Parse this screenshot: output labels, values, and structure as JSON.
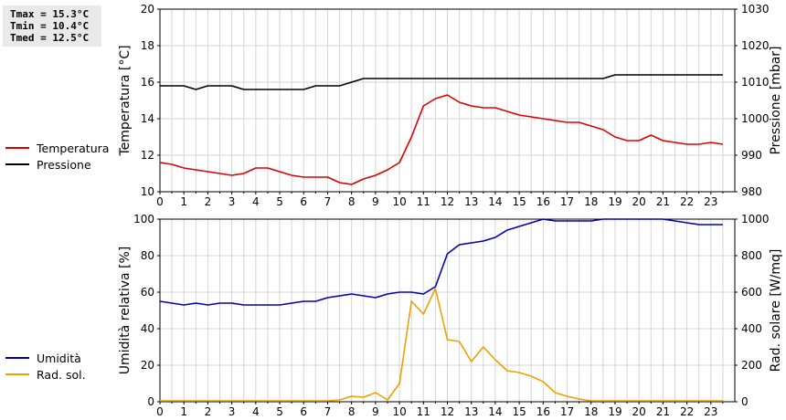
{
  "stats": {
    "tmax": "Tmax = 15.3°C",
    "tmin": "Tmin = 10.4°C",
    "tmed": "Tmed = 12.5°C"
  },
  "legend_top": [
    {
      "label": "Temperatura",
      "color": "#dd0000"
    },
    {
      "label": "Pressione",
      "color": "#000000"
    }
  ],
  "legend_bottom": [
    {
      "label": "Umidità",
      "color": "#0000bb"
    },
    {
      "label": "Rad. sol.",
      "color": "#f0a000"
    }
  ],
  "chart_data": [
    {
      "type": "line",
      "x_ticks": [
        "0",
        "1",
        "2",
        "3",
        "4",
        "5",
        "6",
        "7",
        "8",
        "9",
        "10",
        "11",
        "12",
        "13",
        "14",
        "15",
        "16",
        "17",
        "18",
        "19",
        "20",
        "21",
        "22",
        "23"
      ],
      "xlim": [
        0,
        24
      ],
      "ylabel": "Temperatura [°C]",
      "ylim": [
        10,
        20
      ],
      "y_ticks": [
        "10",
        "12",
        "14",
        "16",
        "18",
        "20"
      ],
      "y2label": "Pressione [mbar]",
      "y2lim": [
        980,
        1030
      ],
      "y2_ticks": [
        "980",
        "990",
        "1000",
        "1010",
        "1020",
        "1030"
      ],
      "grid": true,
      "series": [
        {
          "name": "Temperatura",
          "axis": "left",
          "color": "#dd0000",
          "x": [
            0,
            0.5,
            1,
            1.5,
            2,
            2.5,
            3,
            3.5,
            4,
            4.5,
            5,
            5.5,
            6,
            6.5,
            7,
            7.5,
            8,
            8.5,
            9,
            9.5,
            10,
            10.5,
            11,
            11.5,
            12,
            12.5,
            13,
            13.5,
            14,
            14.5,
            15,
            15.5,
            16,
            16.5,
            17,
            17.5,
            18,
            18.5,
            19,
            19.5,
            20,
            20.5,
            21,
            21.5,
            22,
            22.5,
            23,
            23.5
          ],
          "y": [
            11.6,
            11.5,
            11.3,
            11.2,
            11.1,
            11.0,
            10.9,
            11.0,
            11.3,
            11.3,
            11.1,
            10.9,
            10.8,
            10.8,
            10.8,
            10.5,
            10.4,
            10.7,
            10.9,
            11.2,
            11.6,
            13.0,
            14.7,
            15.1,
            15.3,
            14.9,
            14.7,
            14.6,
            14.6,
            14.4,
            14.2,
            14.1,
            14.0,
            13.9,
            13.8,
            13.8,
            13.6,
            13.4,
            13.0,
            12.8,
            12.8,
            13.1,
            12.8,
            12.7,
            12.6,
            12.6,
            12.7,
            12.6
          ]
        },
        {
          "name": "Pressione",
          "axis": "right",
          "color": "#000000",
          "x": [
            0,
            0.5,
            1,
            1.5,
            2,
            2.5,
            3,
            3.5,
            4,
            4.5,
            5,
            5.5,
            6,
            6.5,
            7,
            7.5,
            8,
            8.5,
            9,
            9.5,
            10,
            10.5,
            11,
            11.5,
            12,
            12.5,
            13,
            13.5,
            14,
            14.5,
            15,
            15.5,
            16,
            16.5,
            17,
            17.5,
            18,
            18.5,
            19,
            19.5,
            20,
            20.5,
            21,
            21.5,
            22,
            22.5,
            23,
            23.5
          ],
          "y": [
            1009,
            1009,
            1009,
            1008,
            1009,
            1009,
            1009,
            1008,
            1008,
            1008,
            1008,
            1008,
            1008,
            1009,
            1009,
            1009,
            1010,
            1011,
            1011,
            1011,
            1011,
            1011,
            1011,
            1011,
            1011,
            1011,
            1011,
            1011,
            1011,
            1011,
            1011,
            1011,
            1011,
            1011,
            1011,
            1011,
            1011,
            1011,
            1012,
            1012,
            1012,
            1012,
            1012,
            1012,
            1012,
            1012,
            1012,
            1012
          ]
        }
      ]
    },
    {
      "type": "line",
      "x_ticks": [
        "0",
        "1",
        "2",
        "3",
        "4",
        "5",
        "6",
        "7",
        "8",
        "9",
        "10",
        "11",
        "12",
        "13",
        "14",
        "15",
        "16",
        "17",
        "18",
        "19",
        "20",
        "21",
        "22",
        "23"
      ],
      "xlim": [
        0,
        24
      ],
      "ylabel": "Umidità relativa [%]",
      "ylim": [
        0,
        100
      ],
      "y_ticks": [
        "0",
        "20",
        "40",
        "60",
        "80",
        "100"
      ],
      "y2label": "Rad. solare [W/mq]",
      "y2lim": [
        0,
        1000
      ],
      "y2_ticks": [
        "0",
        "200",
        "400",
        "600",
        "800",
        "1000"
      ],
      "grid": true,
      "series": [
        {
          "name": "Umidità",
          "axis": "left",
          "color": "#0000bb",
          "x": [
            0,
            0.5,
            1,
            1.5,
            2,
            2.5,
            3,
            3.5,
            4,
            4.5,
            5,
            5.5,
            6,
            6.5,
            7,
            7.5,
            8,
            8.5,
            9,
            9.5,
            10,
            10.5,
            11,
            11.5,
            12,
            12.5,
            13,
            13.5,
            14,
            14.5,
            15,
            15.5,
            16,
            16.5,
            17,
            17.5,
            18,
            18.5,
            19,
            19.5,
            20,
            20.5,
            21,
            21.5,
            22,
            22.5,
            23,
            23.5
          ],
          "y": [
            55,
            54,
            53,
            54,
            53,
            54,
            54,
            53,
            53,
            53,
            53,
            54,
            55,
            55,
            57,
            58,
            59,
            58,
            57,
            59,
            60,
            60,
            59,
            63,
            81,
            86,
            87,
            88,
            90,
            94,
            96,
            98,
            100,
            99,
            99,
            99,
            99,
            100,
            100,
            100,
            100,
            100,
            100,
            99,
            98,
            97,
            97,
            97
          ]
        },
        {
          "name": "Rad. sol.",
          "axis": "right",
          "color": "#f0a000",
          "x": [
            0,
            0.5,
            1,
            1.5,
            2,
            2.5,
            3,
            3.5,
            4,
            4.5,
            5,
            5.5,
            6,
            6.5,
            7,
            7.5,
            8,
            8.5,
            9,
            9.5,
            10,
            10.5,
            11,
            11.5,
            12,
            12.5,
            13,
            13.5,
            14,
            14.5,
            15,
            15.5,
            16,
            16.5,
            17,
            17.5,
            18,
            18.5,
            19,
            19.5,
            20,
            20.5,
            21,
            21.5,
            22,
            22.5,
            23,
            23.5
          ],
          "y": [
            5,
            5,
            5,
            5,
            5,
            5,
            5,
            5,
            5,
            5,
            5,
            5,
            5,
            5,
            5,
            10,
            30,
            25,
            50,
            10,
            100,
            550,
            480,
            620,
            340,
            330,
            220,
            300,
            230,
            170,
            160,
            140,
            110,
            50,
            30,
            15,
            5,
            5,
            5,
            5,
            5,
            5,
            5,
            5,
            5,
            5,
            5,
            5
          ]
        }
      ]
    }
  ]
}
